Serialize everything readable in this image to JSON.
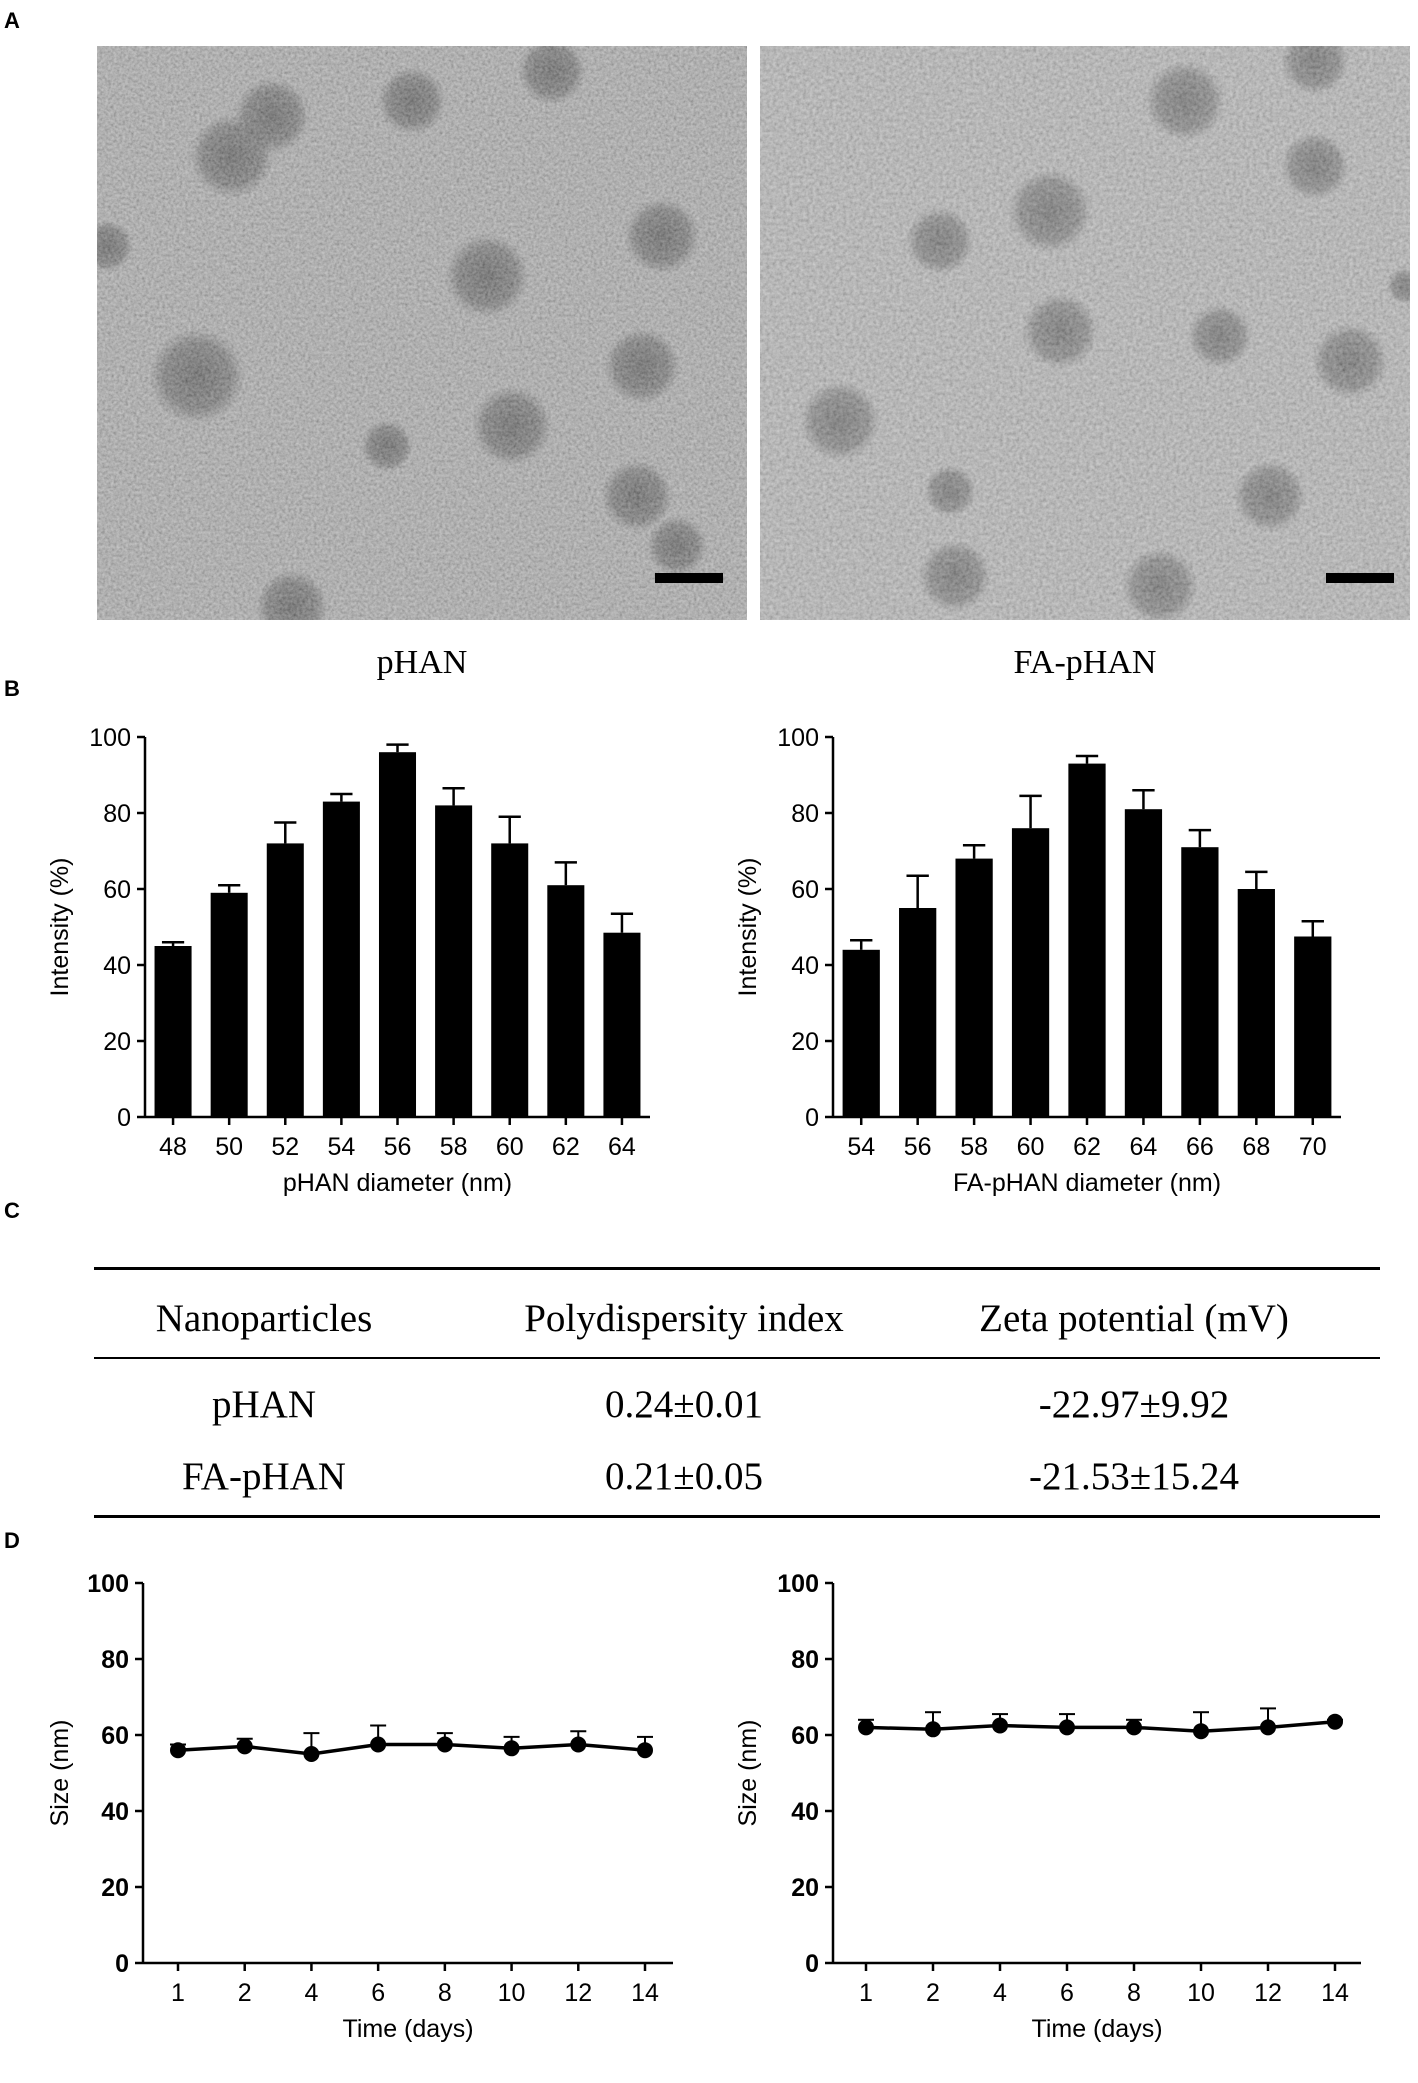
{
  "panels": {
    "a": "A",
    "b": "B",
    "c": "C",
    "d": "D"
  },
  "tem": {
    "captions": [
      "pHAN",
      "FA-pHAN"
    ]
  },
  "table": {
    "headers": [
      "Nanoparticles",
      "Polydispersity index",
      "Zeta potential (mV)"
    ],
    "rows": [
      [
        "pHAN",
        "0.24±0.01",
        "-22.97±9.92"
      ],
      [
        "FA-pHAN",
        "0.21±0.05",
        "-21.53±15.24"
      ]
    ]
  },
  "chart_data": [
    {
      "type": "bar",
      "categories": [
        "48",
        "50",
        "52",
        "54",
        "56",
        "58",
        "60",
        "62",
        "64"
      ],
      "values": [
        45,
        59,
        72,
        83,
        96,
        82,
        72,
        61,
        48.5
      ],
      "errors": [
        1,
        2,
        5.5,
        2,
        2,
        4.5,
        7,
        6,
        5
      ],
      "xlabel": "pHAN diameter (nm)",
      "ylabel": "Intensity (%)",
      "ylim": [
        0,
        100
      ],
      "yticks": [
        0,
        20,
        40,
        60,
        80,
        100
      ],
      "color": "#000000"
    },
    {
      "type": "bar",
      "categories": [
        "54",
        "56",
        "58",
        "60",
        "62",
        "64",
        "66",
        "68",
        "70"
      ],
      "values": [
        44,
        55,
        68,
        76,
        93,
        81,
        71,
        60,
        47.5
      ],
      "errors": [
        2.5,
        8.5,
        3.5,
        8.5,
        2,
        5,
        4.5,
        4.5,
        4
      ],
      "xlabel": "FA-pHAN diameter (nm)",
      "ylabel": "Intensity (%)",
      "ylim": [
        0,
        100
      ],
      "yticks": [
        0,
        20,
        40,
        60,
        80,
        100
      ],
      "color": "#000000"
    },
    {
      "type": "line",
      "x": [
        "1",
        "2",
        "4",
        "6",
        "8",
        "10",
        "12",
        "14"
      ],
      "values": [
        56,
        57,
        55,
        57.5,
        57.5,
        56.5,
        57.5,
        56
      ],
      "errors": [
        1.5,
        2,
        5.5,
        5,
        3,
        3,
        3.5,
        3.5
      ],
      "xlabel": "Time (days)",
      "ylabel": "Size (nm)",
      "ylim": [
        0,
        100
      ],
      "yticks": [
        0,
        20,
        40,
        60,
        80,
        100
      ],
      "color": "#000000"
    },
    {
      "type": "line",
      "x": [
        "1",
        "2",
        "4",
        "6",
        "8",
        "10",
        "12",
        "14"
      ],
      "values": [
        62,
        61.5,
        62.5,
        62,
        62,
        61,
        62,
        63.5
      ],
      "errors": [
        2,
        4.5,
        3,
        3.5,
        2,
        5,
        5,
        0.5
      ],
      "xlabel": "Time (days)",
      "ylabel": "Size (nm)",
      "ylim": [
        0,
        100
      ],
      "yticks": [
        0,
        20,
        40,
        60,
        80,
        100
      ],
      "color": "#000000"
    }
  ]
}
